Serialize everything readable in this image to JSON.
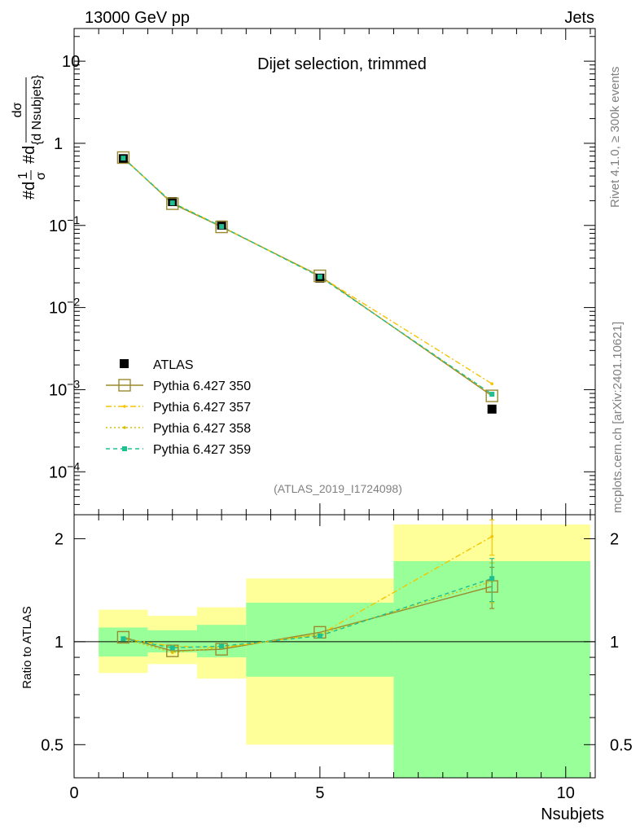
{
  "header": {
    "left": "13000 GeV pp",
    "right": "Jets"
  },
  "side": {
    "rivet": "Rivet 4.1.0, ≥ 300k events",
    "mcplots": "mcplots.cern.ch [arXiv:2401.10621]"
  },
  "chart_data": [
    {
      "type": "line",
      "title": "Dijet selection, trimmed",
      "analysis_label": "(ATLAS_2019_I1724098)",
      "ylabel_parts": {
        "prefix": "#d",
        "one": "1",
        "sigma": "σ",
        "mid": "#d",
        "num": "dσ",
        "den": "{d Nsubjets}"
      },
      "yscale": "log",
      "ylim": [
        3e-05,
        25
      ],
      "yticks": [
        {
          "value": 0.0001,
          "base": "10",
          "exp": "−4"
        },
        {
          "value": 0.001,
          "base": "10",
          "exp": "−3"
        },
        {
          "value": 0.01,
          "base": "10",
          "exp": "−2"
        },
        {
          "value": 0.1,
          "base": "10",
          "exp": "−1"
        },
        {
          "value": 1,
          "base": "1",
          "exp": ""
        },
        {
          "value": 10,
          "base": "10",
          "exp": ""
        }
      ],
      "xlim": [
        0,
        10.6
      ],
      "x": [
        1,
        2,
        3,
        5,
        8.5
      ],
      "data": {
        "name": "ATLAS",
        "values": [
          0.65,
          0.195,
          0.101,
          0.0228,
          0.00058
        ]
      },
      "series": [
        {
          "name": "Pythia 6.427 350",
          "color": "#9a8a2e",
          "style": "solid",
          "marker": "open-square",
          "values": [
            0.67,
            0.184,
            0.096,
            0.0243,
            0.00084
          ]
        },
        {
          "name": "Pythia 6.427 357",
          "color": "#f5c400",
          "style": "dashdot",
          "marker": "dot",
          "values": [
            0.66,
            0.19,
            0.097,
            0.024,
            0.00118
          ]
        },
        {
          "name": "Pythia 6.427 358",
          "color": "#d4c000",
          "style": "dotted",
          "marker": "dot",
          "values": [
            0.66,
            0.188,
            0.096,
            0.0239,
            0.00087
          ]
        },
        {
          "name": "Pythia 6.427 359",
          "color": "#1fbf8f",
          "style": "dashed",
          "marker": "filled-square",
          "values": [
            0.66,
            0.188,
            0.097,
            0.0237,
            0.00088
          ]
        }
      ],
      "legend_position": "lower-left"
    },
    {
      "type": "line",
      "ylabel": "Ratio to ATLAS",
      "xlabel": "Nsubjets",
      "yscale": "log",
      "ylim": [
        0.4,
        2.35
      ],
      "yticks": [
        {
          "value": 0.5,
          "label": "0.5"
        },
        {
          "value": 1,
          "label": "1"
        },
        {
          "value": 2,
          "label": "2"
        }
      ],
      "xticks": [
        {
          "value": 0,
          "label": "0"
        },
        {
          "value": 5,
          "label": "5"
        },
        {
          "value": 10,
          "label": "10"
        }
      ],
      "xlim": [
        0,
        10.6
      ],
      "bands": [
        {
          "x0": 0.5,
          "x1": 1.5,
          "yellow": [
            0.81,
            1.24
          ],
          "green": [
            0.905,
            1.1
          ]
        },
        {
          "x0": 1.5,
          "x1": 2.5,
          "yellow": [
            0.86,
            1.19
          ],
          "green": [
            0.93,
            1.08
          ]
        },
        {
          "x0": 2.5,
          "x1": 3.5,
          "yellow": [
            0.78,
            1.26
          ],
          "green": [
            0.9,
            1.12
          ]
        },
        {
          "x0": 3.5,
          "x1": 6.5,
          "yellow": [
            0.5,
            1.53
          ],
          "green": [
            0.79,
            1.3
          ]
        },
        {
          "x0": 6.5,
          "x1": 10.5,
          "yellow": [
            0.4,
            2.2
          ],
          "green": [
            0.4,
            1.72
          ]
        }
      ],
      "x": [
        1,
        2,
        3,
        5,
        8.5
      ],
      "series": [
        {
          "name": "Pythia 6.427 350",
          "values": [
            1.03,
            0.94,
            0.95,
            1.065,
            1.45
          ],
          "err": [
            0,
            0,
            0,
            0,
            0.2
          ]
        },
        {
          "name": "Pythia 6.427 357",
          "values": [
            1.02,
            0.97,
            0.96,
            1.05,
            2.03
          ],
          "err": [
            0,
            0,
            0,
            0,
            0.24
          ]
        },
        {
          "name": "Pythia 6.427 358",
          "values": [
            1.02,
            0.93,
            0.96,
            1.05,
            1.5
          ],
          "err": [
            0,
            0,
            0,
            0,
            0.2
          ]
        },
        {
          "name": "Pythia 6.427 359",
          "values": [
            1.02,
            0.96,
            0.97,
            1.04,
            1.53
          ],
          "err": [
            0,
            0,
            0,
            0,
            0.22
          ]
        }
      ]
    }
  ]
}
